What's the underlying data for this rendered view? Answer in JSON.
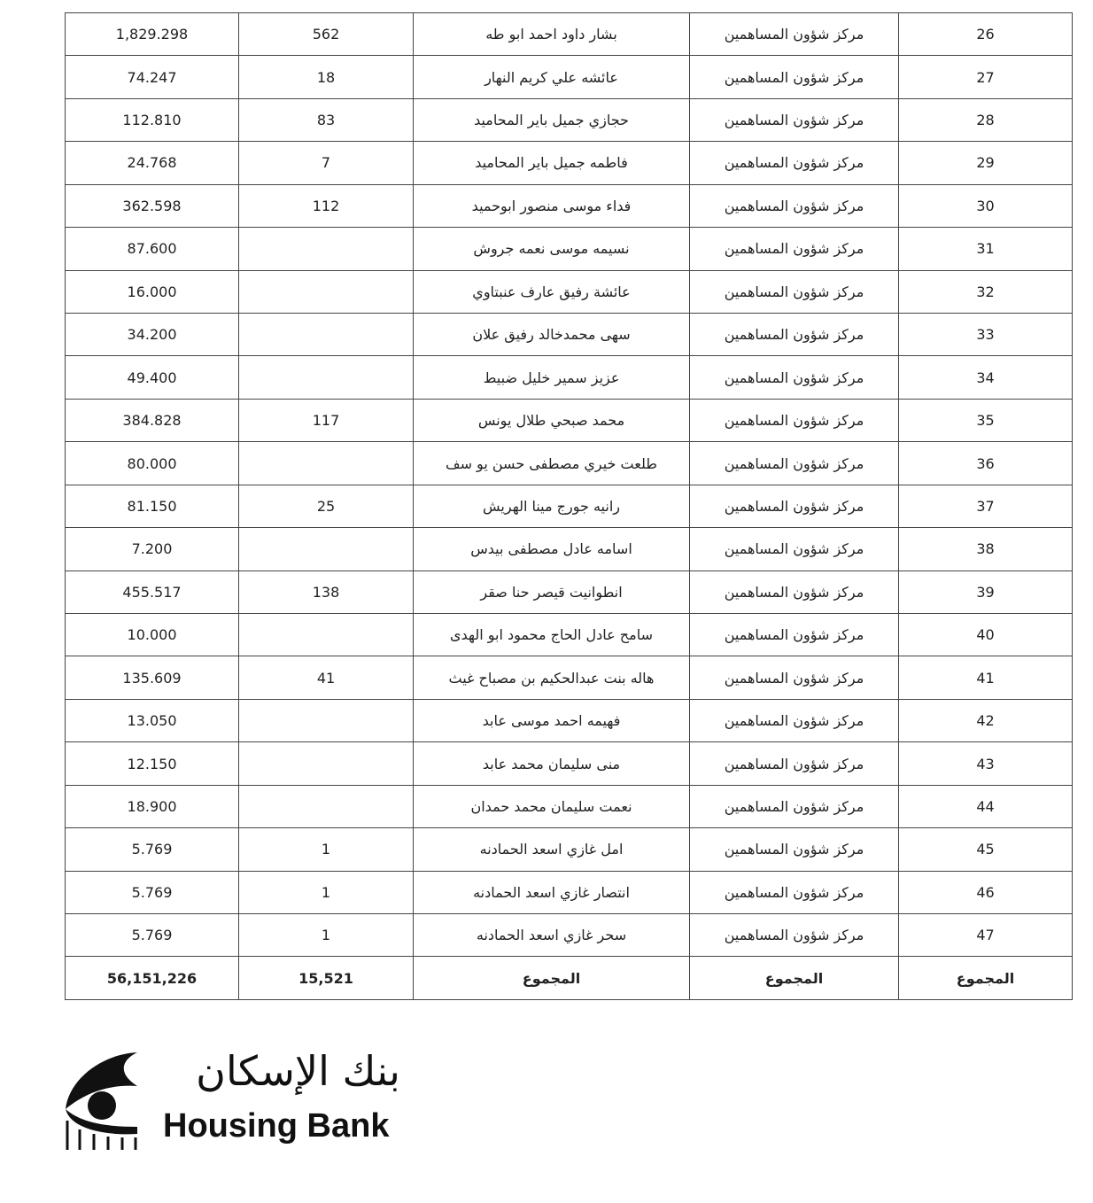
{
  "table": {
    "rows": [
      [
        "26",
        "مركز شؤون المساهمين",
        "بشار داود احمد ابو طه",
        "562",
        "1,829.298"
      ],
      [
        "27",
        "مركز شؤون المساهمين",
        "عائشه علي كريم النهار",
        "18",
        "74.247"
      ],
      [
        "28",
        "مركز شؤون المساهمين",
        "حجازي جميل باير المحاميد",
        "83",
        "112.810"
      ],
      [
        "29",
        "مركز شؤون المساهمين",
        "فاطمه جميل باير المحاميد",
        "7",
        "24.768"
      ],
      [
        "30",
        "مركز شؤون المساهمين",
        "فداء موسى منصور ابوحميد",
        "112",
        "362.598"
      ],
      [
        "31",
        "مركز شؤون المساهمين",
        "نسيمه موسى نعمه جروش",
        null,
        "87.600"
      ],
      [
        "32",
        "مركز شؤون المساهمين",
        "عائشة رفيق عارف عنبتاوي",
        null,
        "16.000"
      ],
      [
        "33",
        "مركز شؤون المساهمين",
        "سهى محمدخالد رفيق علان",
        null,
        "34.200"
      ],
      [
        "34",
        "مركز شؤون المساهمين",
        "عزيز سمير خليل ضبيط",
        null,
        "49.400"
      ],
      [
        "35",
        "مركز شؤون المساهمين",
        "محمد صبحي طلال يونس",
        "117",
        "384.828"
      ],
      [
        "36",
        "مركز شؤون المساهمين",
        "طلعت خيري مصطفى حسن يو سف",
        null,
        "80.000"
      ],
      [
        "37",
        "مركز شؤون المساهمين",
        "رانيه جورج مينا الهريش",
        "25",
        "81.150"
      ],
      [
        "38",
        "مركز شؤون المساهمين",
        "اسامه عادل مصطفى بيدس",
        null,
        "7.200"
      ],
      [
        "39",
        "مركز شؤون المساهمين",
        "انطوانيت قيصر حنا صقر",
        "138",
        "455.517"
      ],
      [
        "40",
        "مركز شؤون المساهمين",
        "سامح عادل الحاج محمود ابو الهدى",
        null,
        "10.000"
      ],
      [
        "41",
        "مركز شؤون المساهمين",
        "هاله بنت عبدالحكيم بن مصباح غيث",
        "41",
        "135.609"
      ],
      [
        "42",
        "مركز شؤون المساهمين",
        "فهيمه احمد موسى عابد",
        null,
        "13.050"
      ],
      [
        "43",
        "مركز شؤون المساهمين",
        "منى سليمان محمد عابد",
        null,
        "12.150"
      ],
      [
        "44",
        "مركز شؤون المساهمين",
        "نعمت سليمان محمد حمدان",
        null,
        "18.900"
      ],
      [
        "45",
        "مركز شؤون المساهمين",
        "امل غازي اسعد الحمادنه",
        "1",
        "5.769"
      ],
      [
        "46",
        "مركز شؤون المساهمين",
        "انتصار غازي اسعد الحمادنه",
        "1",
        "5.769"
      ],
      [
        "47",
        "مركز شؤون المساهمين",
        "سحر غازي اسعد الحمادنه",
        "1",
        "5.769"
      ],
      [
        "المجموع",
        "المجموع",
        "المجموع",
        "15,521",
        "56,151,226"
      ]
    ]
  },
  "logo": {
    "arabic": "بنك الإسكان",
    "english": "Housing Bank"
  }
}
